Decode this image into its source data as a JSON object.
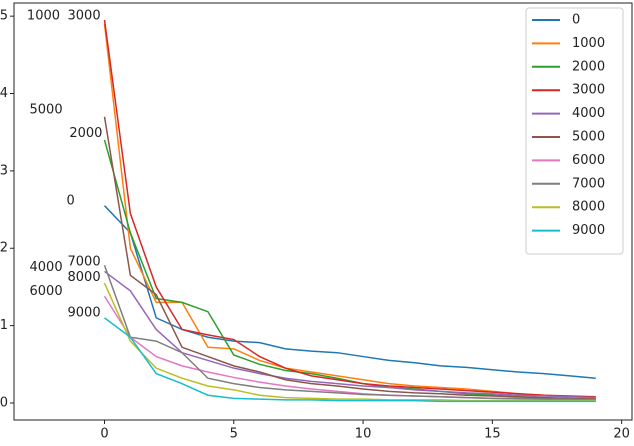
{
  "chart_data": {
    "type": "line",
    "x": [
      0,
      1,
      2,
      3,
      4,
      5,
      6,
      7,
      8,
      9,
      10,
      11,
      12,
      13,
      14,
      15,
      16,
      17,
      18,
      19
    ],
    "xlim": [
      -3.5,
      20.4
    ],
    "ylim": [
      -0.22,
      5.17
    ],
    "xticks": [
      0,
      5,
      10,
      15,
      20
    ],
    "yticks": [
      0,
      1,
      2,
      3,
      4,
      5
    ],
    "legend": "upper right",
    "series": [
      {
        "name": "0",
        "color": "#1f77b4",
        "values": [
          2.55,
          2.2,
          1.1,
          0.95,
          0.85,
          0.8,
          0.78,
          0.7,
          0.67,
          0.65,
          0.6,
          0.55,
          0.52,
          0.48,
          0.46,
          0.43,
          0.4,
          0.38,
          0.35,
          0.32
        ]
      },
      {
        "name": "1000",
        "color": "#ff7f0e",
        "values": [
          4.9,
          2.0,
          1.3,
          1.3,
          0.72,
          0.7,
          0.55,
          0.45,
          0.4,
          0.35,
          0.3,
          0.25,
          0.22,
          0.2,
          0.18,
          0.15,
          0.12,
          0.1,
          0.08,
          0.07
        ]
      },
      {
        "name": "2000",
        "color": "#2ca02c",
        "values": [
          3.4,
          2.2,
          1.35,
          1.3,
          1.18,
          0.62,
          0.5,
          0.42,
          0.38,
          0.32,
          0.25,
          0.2,
          0.18,
          0.15,
          0.12,
          0.1,
          0.08,
          0.06,
          0.05,
          0.05
        ]
      },
      {
        "name": "3000",
        "color": "#d62728",
        "values": [
          4.95,
          2.45,
          1.5,
          0.95,
          0.88,
          0.82,
          0.6,
          0.45,
          0.35,
          0.3,
          0.25,
          0.22,
          0.2,
          0.18,
          0.16,
          0.14,
          0.12,
          0.1,
          0.09,
          0.08
        ]
      },
      {
        "name": "4000",
        "color": "#9467bd",
        "values": [
          1.7,
          1.45,
          0.95,
          0.65,
          0.55,
          0.45,
          0.38,
          0.32,
          0.28,
          0.25,
          0.22,
          0.2,
          0.17,
          0.15,
          0.13,
          0.12,
          0.1,
          0.09,
          0.08,
          0.07
        ]
      },
      {
        "name": "5000",
        "color": "#8c564b",
        "values": [
          3.7,
          1.65,
          1.4,
          0.72,
          0.6,
          0.48,
          0.4,
          0.3,
          0.25,
          0.22,
          0.18,
          0.15,
          0.13,
          0.12,
          0.1,
          0.09,
          0.08,
          0.07,
          0.06,
          0.05
        ]
      },
      {
        "name": "6000",
        "color": "#e377c2",
        "values": [
          1.38,
          0.85,
          0.6,
          0.48,
          0.4,
          0.33,
          0.27,
          0.22,
          0.18,
          0.15,
          0.12,
          0.1,
          0.09,
          0.08,
          0.07,
          0.06,
          0.05,
          0.05,
          0.04,
          0.04
        ]
      },
      {
        "name": "7000",
        "color": "#7f7f7f",
        "values": [
          1.78,
          0.85,
          0.8,
          0.65,
          0.32,
          0.25,
          0.2,
          0.17,
          0.15,
          0.13,
          0.11,
          0.1,
          0.09,
          0.08,
          0.07,
          0.06,
          0.06,
          0.05,
          0.05,
          0.04
        ]
      },
      {
        "name": "8000",
        "color": "#bcbd22",
        "values": [
          1.55,
          0.8,
          0.45,
          0.32,
          0.22,
          0.17,
          0.1,
          0.07,
          0.06,
          0.05,
          0.05,
          0.04,
          0.04,
          0.04,
          0.03,
          0.03,
          0.03,
          0.03,
          0.03,
          0.03
        ]
      },
      {
        "name": "9000",
        "color": "#17becf",
        "values": [
          1.1,
          0.85,
          0.38,
          0.25,
          0.1,
          0.06,
          0.05,
          0.04,
          0.04,
          0.03,
          0.03,
          0.03,
          0.03,
          0.02,
          0.02,
          0.02,
          0.02,
          0.02,
          0.02,
          0.02
        ]
      }
    ],
    "annotations": [
      {
        "text": "1000",
        "x": -3.0,
        "y": 5.0
      },
      {
        "text": "3000",
        "x": -1.43,
        "y": 5.0
      },
      {
        "text": "5000",
        "x": -2.9,
        "y": 3.79
      },
      {
        "text": "2000",
        "x": -1.36,
        "y": 3.48
      },
      {
        "text": "0",
        "x": -1.47,
        "y": 2.61
      },
      {
        "text": "7000",
        "x": -1.43,
        "y": 1.82
      },
      {
        "text": "4000",
        "x": -2.9,
        "y": 1.75
      },
      {
        "text": "8000",
        "x": -1.43,
        "y": 1.62
      },
      {
        "text": "6000",
        "x": -2.9,
        "y": 1.44
      },
      {
        "text": "9000",
        "x": -1.43,
        "y": 1.16
      }
    ]
  }
}
